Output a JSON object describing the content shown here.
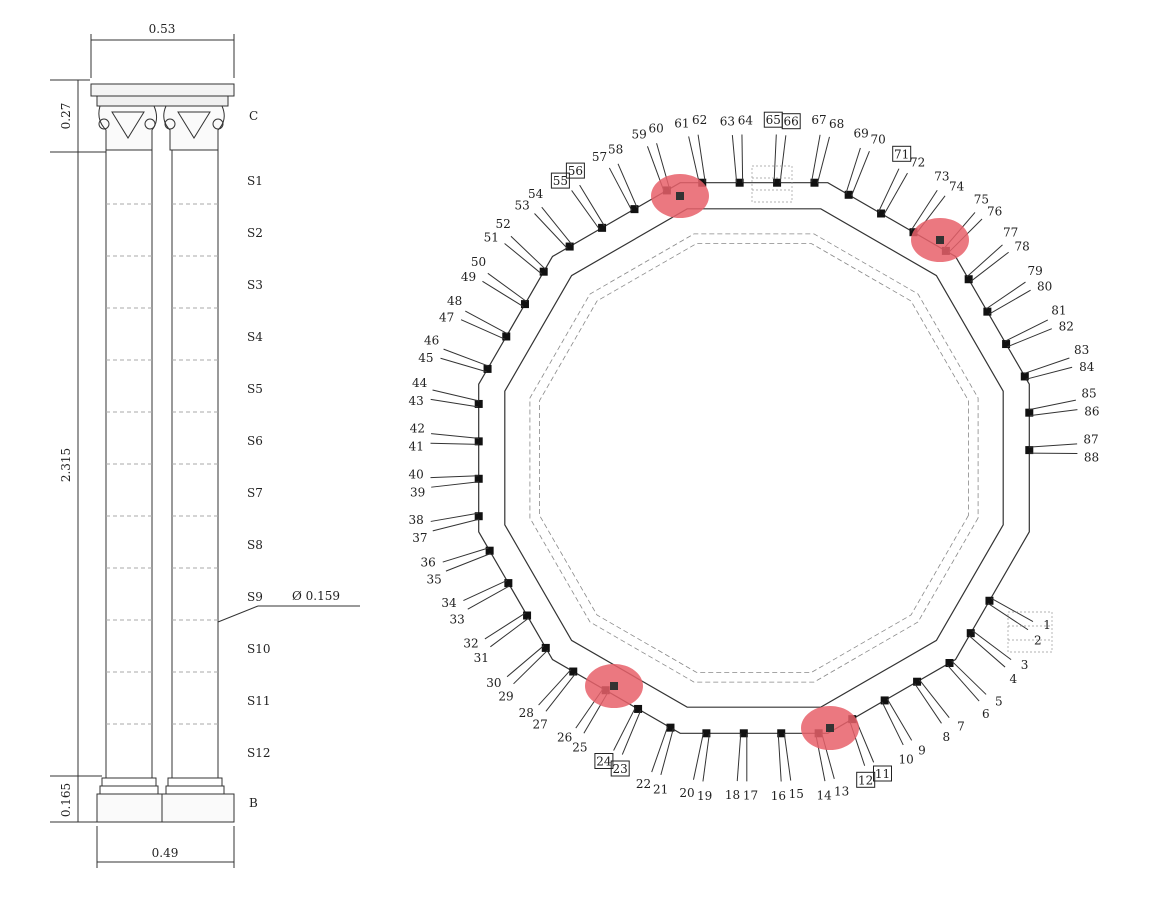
{
  "column": {
    "top_width": "0.53",
    "bottom_width": "0.49",
    "capital_height": "0.27",
    "shaft_height": "2.315",
    "base_height": "0.165",
    "diameter": "Ø 0.159",
    "capital_label": "C",
    "base_label": "B",
    "segments": [
      "S1",
      "S2",
      "S3",
      "S4",
      "S5",
      "S6",
      "S7",
      "S8",
      "S9",
      "S10",
      "S11",
      "S12"
    ]
  },
  "plan": {
    "highlight_color": "#e8606a",
    "labels": [
      "1",
      "2",
      "3",
      "4",
      "5",
      "6",
      "7",
      "8",
      "9",
      "10",
      "11",
      "12",
      "13",
      "14",
      "15",
      "16",
      "17",
      "18",
      "19",
      "20",
      "21",
      "22",
      "23",
      "24",
      "25",
      "26",
      "27",
      "28",
      "29",
      "30",
      "31",
      "32",
      "33",
      "34",
      "35",
      "36",
      "37",
      "38",
      "39",
      "40",
      "41",
      "42",
      "43",
      "44",
      "45",
      "46",
      "47",
      "48",
      "49",
      "50",
      "51",
      "52",
      "53",
      "54",
      "55",
      "56",
      "57",
      "58",
      "59",
      "60",
      "61",
      "62",
      "63",
      "64",
      "65",
      "66",
      "67",
      "68",
      "69",
      "70",
      "71",
      "72",
      "73",
      "74",
      "75",
      "76",
      "77",
      "78",
      "79",
      "80",
      "81",
      "82",
      "83",
      "84",
      "85",
      "86",
      "87",
      "88"
    ],
    "boxed_labels": [
      "11",
      "12",
      "23",
      "24",
      "55",
      "56",
      "65",
      "66",
      "71"
    ]
  }
}
